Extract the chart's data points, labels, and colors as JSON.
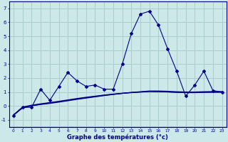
{
  "x": [
    0,
    1,
    2,
    3,
    4,
    5,
    6,
    7,
    8,
    9,
    10,
    11,
    12,
    13,
    14,
    15,
    16,
    17,
    18,
    19,
    20,
    21,
    22,
    23
  ],
  "line_main": [
    -0.7,
    -0.1,
    -0.1,
    1.2,
    0.4,
    1.4,
    2.4,
    1.8,
    1.4,
    1.5,
    1.2,
    1.2,
    3.0,
    5.2,
    6.6,
    6.8,
    5.8,
    4.1,
    2.5,
    0.7,
    1.5,
    2.5,
    1.1,
    1.0
  ],
  "line_smooth1": [
    -0.65,
    -0.15,
    0.0,
    0.1,
    0.18,
    0.27,
    0.37,
    0.47,
    0.56,
    0.65,
    0.74,
    0.82,
    0.9,
    0.97,
    1.02,
    1.07,
    1.07,
    1.05,
    1.02,
    1.0,
    1.0,
    1.02,
    1.03,
    1.03
  ],
  "line_smooth2": [
    -0.65,
    -0.12,
    0.02,
    0.12,
    0.21,
    0.3,
    0.4,
    0.5,
    0.59,
    0.67,
    0.76,
    0.83,
    0.9,
    0.95,
    0.99,
    1.03,
    1.02,
    1.0,
    0.97,
    0.95,
    0.95,
    0.97,
    0.98,
    0.98
  ],
  "line_smooth3": [
    -0.65,
    -0.08,
    0.05,
    0.15,
    0.24,
    0.33,
    0.43,
    0.53,
    0.62,
    0.7,
    0.78,
    0.85,
    0.91,
    0.96,
    1.0,
    1.04,
    1.03,
    1.01,
    0.98,
    0.96,
    0.96,
    0.98,
    0.99,
    0.99
  ],
  "xlim": [
    -0.5,
    23.5
  ],
  "ylim": [
    -1.5,
    7.5
  ],
  "yticks": [
    -1,
    0,
    1,
    2,
    3,
    4,
    5,
    6,
    7
  ],
  "xticks": [
    0,
    1,
    2,
    3,
    4,
    5,
    6,
    7,
    8,
    9,
    10,
    11,
    12,
    13,
    14,
    15,
    16,
    17,
    18,
    19,
    20,
    21,
    22,
    23
  ],
  "xlabel": "Graphe des températures (°c)",
  "line_color": "#00008B",
  "bg_color": "#cce8e8",
  "grid_color": "#aacccc"
}
